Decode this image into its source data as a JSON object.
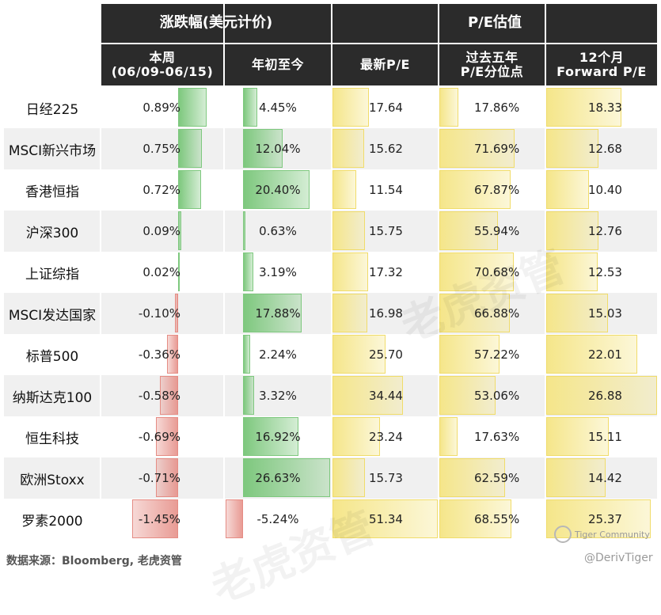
{
  "chart_data": {
    "type": "table",
    "header_groups": [
      "涨跌幅(美元计价)",
      "P/E估值"
    ],
    "columns": [
      "本周\n(06/09-06/15)",
      "年初至今",
      "最新P/E",
      "过去五年\nP/E分位点",
      "12个月\nForward P/E"
    ],
    "rows": [
      {
        "name": "日经225",
        "week": "0.89%",
        "ytd": "4.45%",
        "pe": "17.64",
        "pct5y": "17.86%",
        "fwd": "18.33"
      },
      {
        "name": "MSCI新兴市场",
        "week": "0.75%",
        "ytd": "12.04%",
        "pe": "15.62",
        "pct5y": "71.69%",
        "fwd": "12.68"
      },
      {
        "name": "香港恒指",
        "week": "0.72%",
        "ytd": "20.40%",
        "pe": "11.54",
        "pct5y": "67.87%",
        "fwd": "10.40"
      },
      {
        "name": "沪深300",
        "week": "0.09%",
        "ytd": "0.63%",
        "pe": "15.75",
        "pct5y": "55.94%",
        "fwd": "12.76"
      },
      {
        "name": "上证综指",
        "week": "0.02%",
        "ytd": "3.19%",
        "pe": "17.32",
        "pct5y": "70.68%",
        "fwd": "12.53"
      },
      {
        "name": "MSCI发达国家",
        "week": "-0.10%",
        "ytd": "17.88%",
        "pe": "16.98",
        "pct5y": "66.88%",
        "fwd": "15.03"
      },
      {
        "name": "标普500",
        "week": "-0.36%",
        "ytd": "2.24%",
        "pe": "25.70",
        "pct5y": "57.22%",
        "fwd": "22.01"
      },
      {
        "name": "纳斯达克100",
        "week": "-0.58%",
        "ytd": "3.32%",
        "pe": "34.44",
        "pct5y": "53.06%",
        "fwd": "26.88"
      },
      {
        "name": "恒生科技",
        "week": "-0.69%",
        "ytd": "16.92%",
        "pe": "23.24",
        "pct5y": "17.63%",
        "fwd": "15.11"
      },
      {
        "name": "欧洲Stoxx",
        "week": "-0.71%",
        "ytd": "26.63%",
        "pe": "15.73",
        "pct5y": "62.59%",
        "fwd": "14.42"
      },
      {
        "name": "罗素2000",
        "week": "-1.45%",
        "ytd": "-5.24%",
        "pe": "51.34",
        "pct5y": "68.55%",
        "fwd": "25.37"
      }
    ]
  },
  "footer": {
    "source": "数据来源：Bloomberg, 老虎资管",
    "logo_text": "Tiger Community",
    "handle": "@DerivTiger"
  },
  "watermark": "老虎资管",
  "colors": {
    "header_bg": "#2b2b2b",
    "positive": "#7ec87e",
    "negative": "#e58c84",
    "valuation": "#f5e68a",
    "alt_row": "#f0f0f0"
  }
}
